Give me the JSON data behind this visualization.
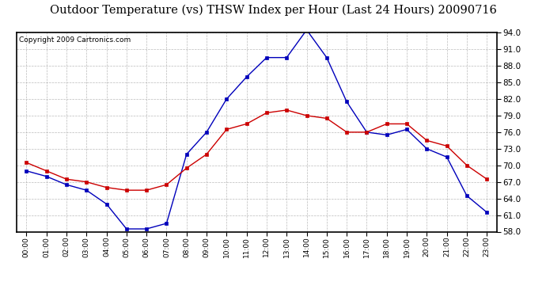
{
  "title": "Outdoor Temperature (vs) THSW Index per Hour (Last 24 Hours) 20090716",
  "copyright": "Copyright 2009 Cartronics.com",
  "hours": [
    "00:00",
    "01:00",
    "02:00",
    "03:00",
    "04:00",
    "05:00",
    "06:00",
    "07:00",
    "08:00",
    "09:00",
    "10:00",
    "11:00",
    "12:00",
    "13:00",
    "14:00",
    "15:00",
    "16:00",
    "17:00",
    "18:00",
    "19:00",
    "20:00",
    "21:00",
    "22:00",
    "23:00"
  ],
  "blue_data": [
    69.0,
    68.0,
    66.5,
    65.5,
    63.0,
    58.5,
    58.5,
    59.5,
    72.0,
    76.0,
    82.0,
    86.0,
    89.5,
    89.5,
    94.5,
    89.5,
    81.5,
    76.0,
    75.5,
    76.5,
    73.0,
    71.5,
    64.5,
    61.5
  ],
  "red_data": [
    70.5,
    69.0,
    67.5,
    67.0,
    66.0,
    65.5,
    65.5,
    66.5,
    69.5,
    72.0,
    76.5,
    77.5,
    79.5,
    80.0,
    79.0,
    78.5,
    76.0,
    76.0,
    77.5,
    77.5,
    74.5,
    73.5,
    70.0,
    67.5
  ],
  "ylim": [
    58.0,
    94.0
  ],
  "yticks": [
    58.0,
    61.0,
    64.0,
    67.0,
    70.0,
    73.0,
    76.0,
    79.0,
    82.0,
    85.0,
    88.0,
    91.0,
    94.0
  ],
  "bg_color": "#FFFFFF",
  "plot_bg_color": "#FFFFFF",
  "grid_color": "#AAAAAA",
  "blue_color": "#0000BB",
  "red_color": "#CC0000",
  "title_color": "#000000",
  "border_color": "#000000",
  "title_fontsize": 10.5,
  "copyright_fontsize": 6.5,
  "tick_fontsize": 7.5,
  "xtick_fontsize": 6.5
}
